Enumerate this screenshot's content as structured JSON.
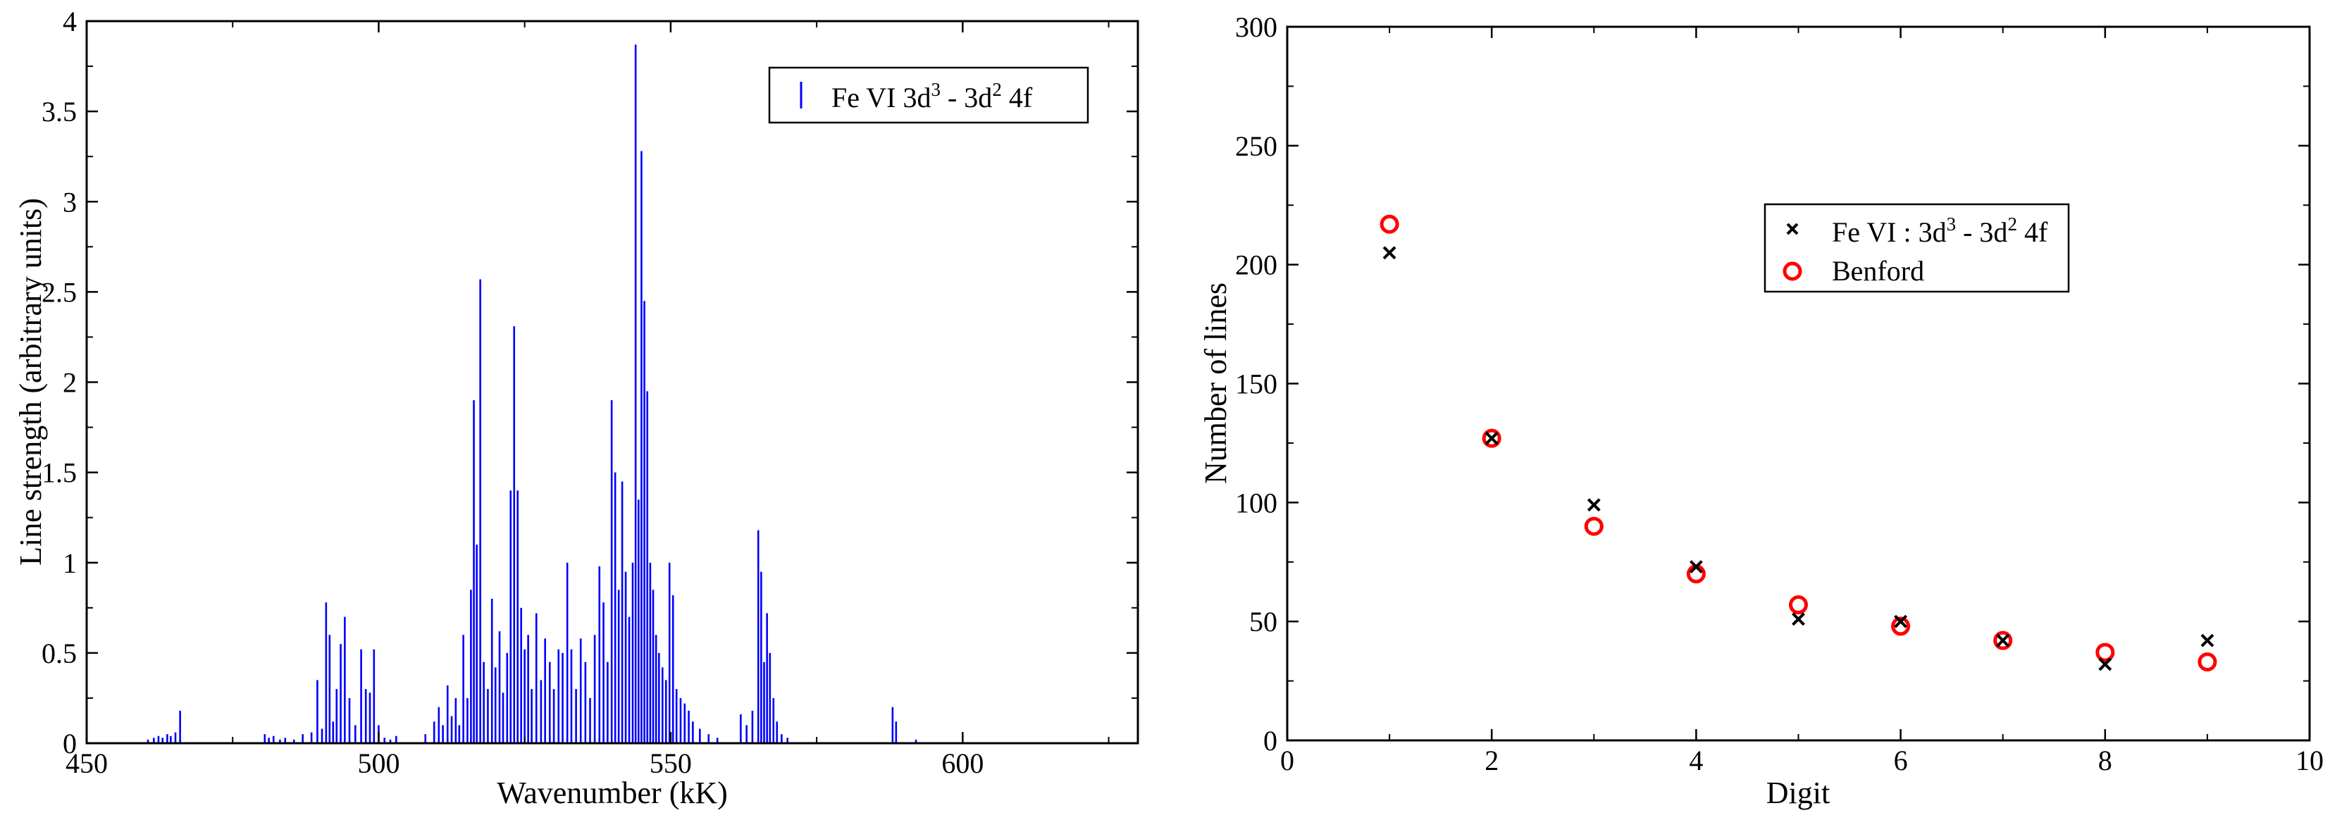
{
  "chart_data": [
    {
      "type": "bar",
      "title": "",
      "xlabel": "Wavenumber (kK)",
      "ylabel": "Line strength (arbitrary units)",
      "xlim": [
        450,
        630
      ],
      "ylim": [
        0,
        4
      ],
      "xticks": [
        "450",
        "500",
        "550",
        "600"
      ],
      "yticks": [
        "0",
        "0.5",
        "1",
        "1.5",
        "2",
        "2.5",
        "3",
        "3.5",
        "4"
      ],
      "legend": {
        "position": "top-right",
        "entries": [
          {
            "base": "Fe VI 3d",
            "sup1": "3",
            "mid": " - 3d",
            "sup2": "2",
            "tail": " 4f"
          }
        ]
      },
      "colors": {
        "lines": "#0000ff"
      },
      "series": [
        {
          "x": [
            460.5,
            461.5,
            462.3,
            463.0,
            463.8,
            464.4,
            465.2,
            466.0,
            480.5,
            481.2,
            482.0,
            483.1,
            484.0,
            485.5,
            487.0,
            488.5,
            489.5,
            490.3,
            491.0,
            491.6,
            492.2,
            492.8,
            493.5,
            494.2,
            495.0,
            496.0,
            497.0,
            497.8,
            498.5,
            499.2,
            500.0,
            501.0,
            502.0,
            503.0,
            508.0,
            509.5,
            510.3,
            511.0,
            511.8,
            512.5,
            513.2,
            513.8,
            514.5,
            515.2,
            515.8,
            516.3,
            516.8,
            517.4,
            518.0,
            518.7,
            519.4,
            520.0,
            520.7,
            521.3,
            522.0,
            522.6,
            523.2,
            523.8,
            524.4,
            525.0,
            525.6,
            526.2,
            527.0,
            527.8,
            528.5,
            529.3,
            530.0,
            530.8,
            531.5,
            532.3,
            533.0,
            533.8,
            534.6,
            535.4,
            536.2,
            537.0,
            537.8,
            538.5,
            539.2,
            539.9,
            540.5,
            541.1,
            541.7,
            542.3,
            542.9,
            543.5,
            544.0,
            544.5,
            545.0,
            545.5,
            546.0,
            546.5,
            547.0,
            547.5,
            548.0,
            548.6,
            549.2,
            549.8,
            550.4,
            551.0,
            551.7,
            552.4,
            553.1,
            553.8,
            555.0,
            556.5,
            558.0,
            562.0,
            563.0,
            564.0,
            565.0,
            565.5,
            566.0,
            566.5,
            567.0,
            567.6,
            568.2,
            569.0,
            570.0,
            588.0,
            588.6,
            592.0
          ],
          "values": [
            0.02,
            0.03,
            0.04,
            0.03,
            0.05,
            0.04,
            0.06,
            0.18,
            0.05,
            0.03,
            0.04,
            0.02,
            0.03,
            0.02,
            0.05,
            0.06,
            0.35,
            0.08,
            0.78,
            0.6,
            0.12,
            0.3,
            0.55,
            0.7,
            0.25,
            0.1,
            0.52,
            0.3,
            0.28,
            0.52,
            0.1,
            0.03,
            0.02,
            0.04,
            0.05,
            0.12,
            0.2,
            0.1,
            0.32,
            0.15,
            0.25,
            0.1,
            0.6,
            0.25,
            0.85,
            1.9,
            1.1,
            2.57,
            0.45,
            0.3,
            0.8,
            0.42,
            0.62,
            0.28,
            0.5,
            1.4,
            2.31,
            1.4,
            0.75,
            0.52,
            0.6,
            0.3,
            0.72,
            0.35,
            0.58,
            0.45,
            0.3,
            0.52,
            0.5,
            1.0,
            0.52,
            0.3,
            0.58,
            0.45,
            0.25,
            0.6,
            0.98,
            0.78,
            0.45,
            1.9,
            1.5,
            0.85,
            1.45,
            0.95,
            0.7,
            1.0,
            3.87,
            1.35,
            3.28,
            2.45,
            1.95,
            1.0,
            0.85,
            0.6,
            0.5,
            0.42,
            0.35,
            1.0,
            0.82,
            0.3,
            0.25,
            0.22,
            0.18,
            0.12,
            0.08,
            0.05,
            0.03,
            0.16,
            0.1,
            0.18,
            1.18,
            0.95,
            0.45,
            0.72,
            0.5,
            0.25,
            0.12,
            0.05,
            0.03,
            0.2,
            0.12,
            0.02
          ]
        }
      ]
    },
    {
      "type": "scatter",
      "title": "",
      "xlabel": "Digit",
      "ylabel": "Number of lines",
      "xlim": [
        0,
        10
      ],
      "ylim": [
        0,
        300
      ],
      "xticks": [
        "0",
        "2",
        "4",
        "6",
        "8",
        "10"
      ],
      "yticks": [
        "0",
        "50",
        "100",
        "150",
        "200",
        "250",
        "300"
      ],
      "legend": {
        "position": "upper-right",
        "entries": [
          {
            "base": "Fe VI : 3d",
            "sup1": "3",
            "mid": " - 3d",
            "sup2": "2",
            "tail": " 4f"
          },
          {
            "base": "Benford",
            "sup1": "",
            "mid": "",
            "sup2": "",
            "tail": ""
          }
        ]
      },
      "colors": {
        "fe": "#000000",
        "benford": "#ff0000"
      },
      "series": [
        {
          "marker": "cross",
          "x": [
            1,
            2,
            3,
            4,
            5,
            6,
            7,
            8,
            9
          ],
          "values": [
            205,
            127,
            99,
            73,
            51,
            50,
            42,
            32,
            42
          ]
        },
        {
          "marker": "circle",
          "x": [
            1,
            2,
            3,
            4,
            5,
            6,
            7,
            8,
            9
          ],
          "values": [
            217,
            127,
            90,
            70,
            57,
            48,
            42,
            37,
            33
          ]
        }
      ]
    }
  ]
}
